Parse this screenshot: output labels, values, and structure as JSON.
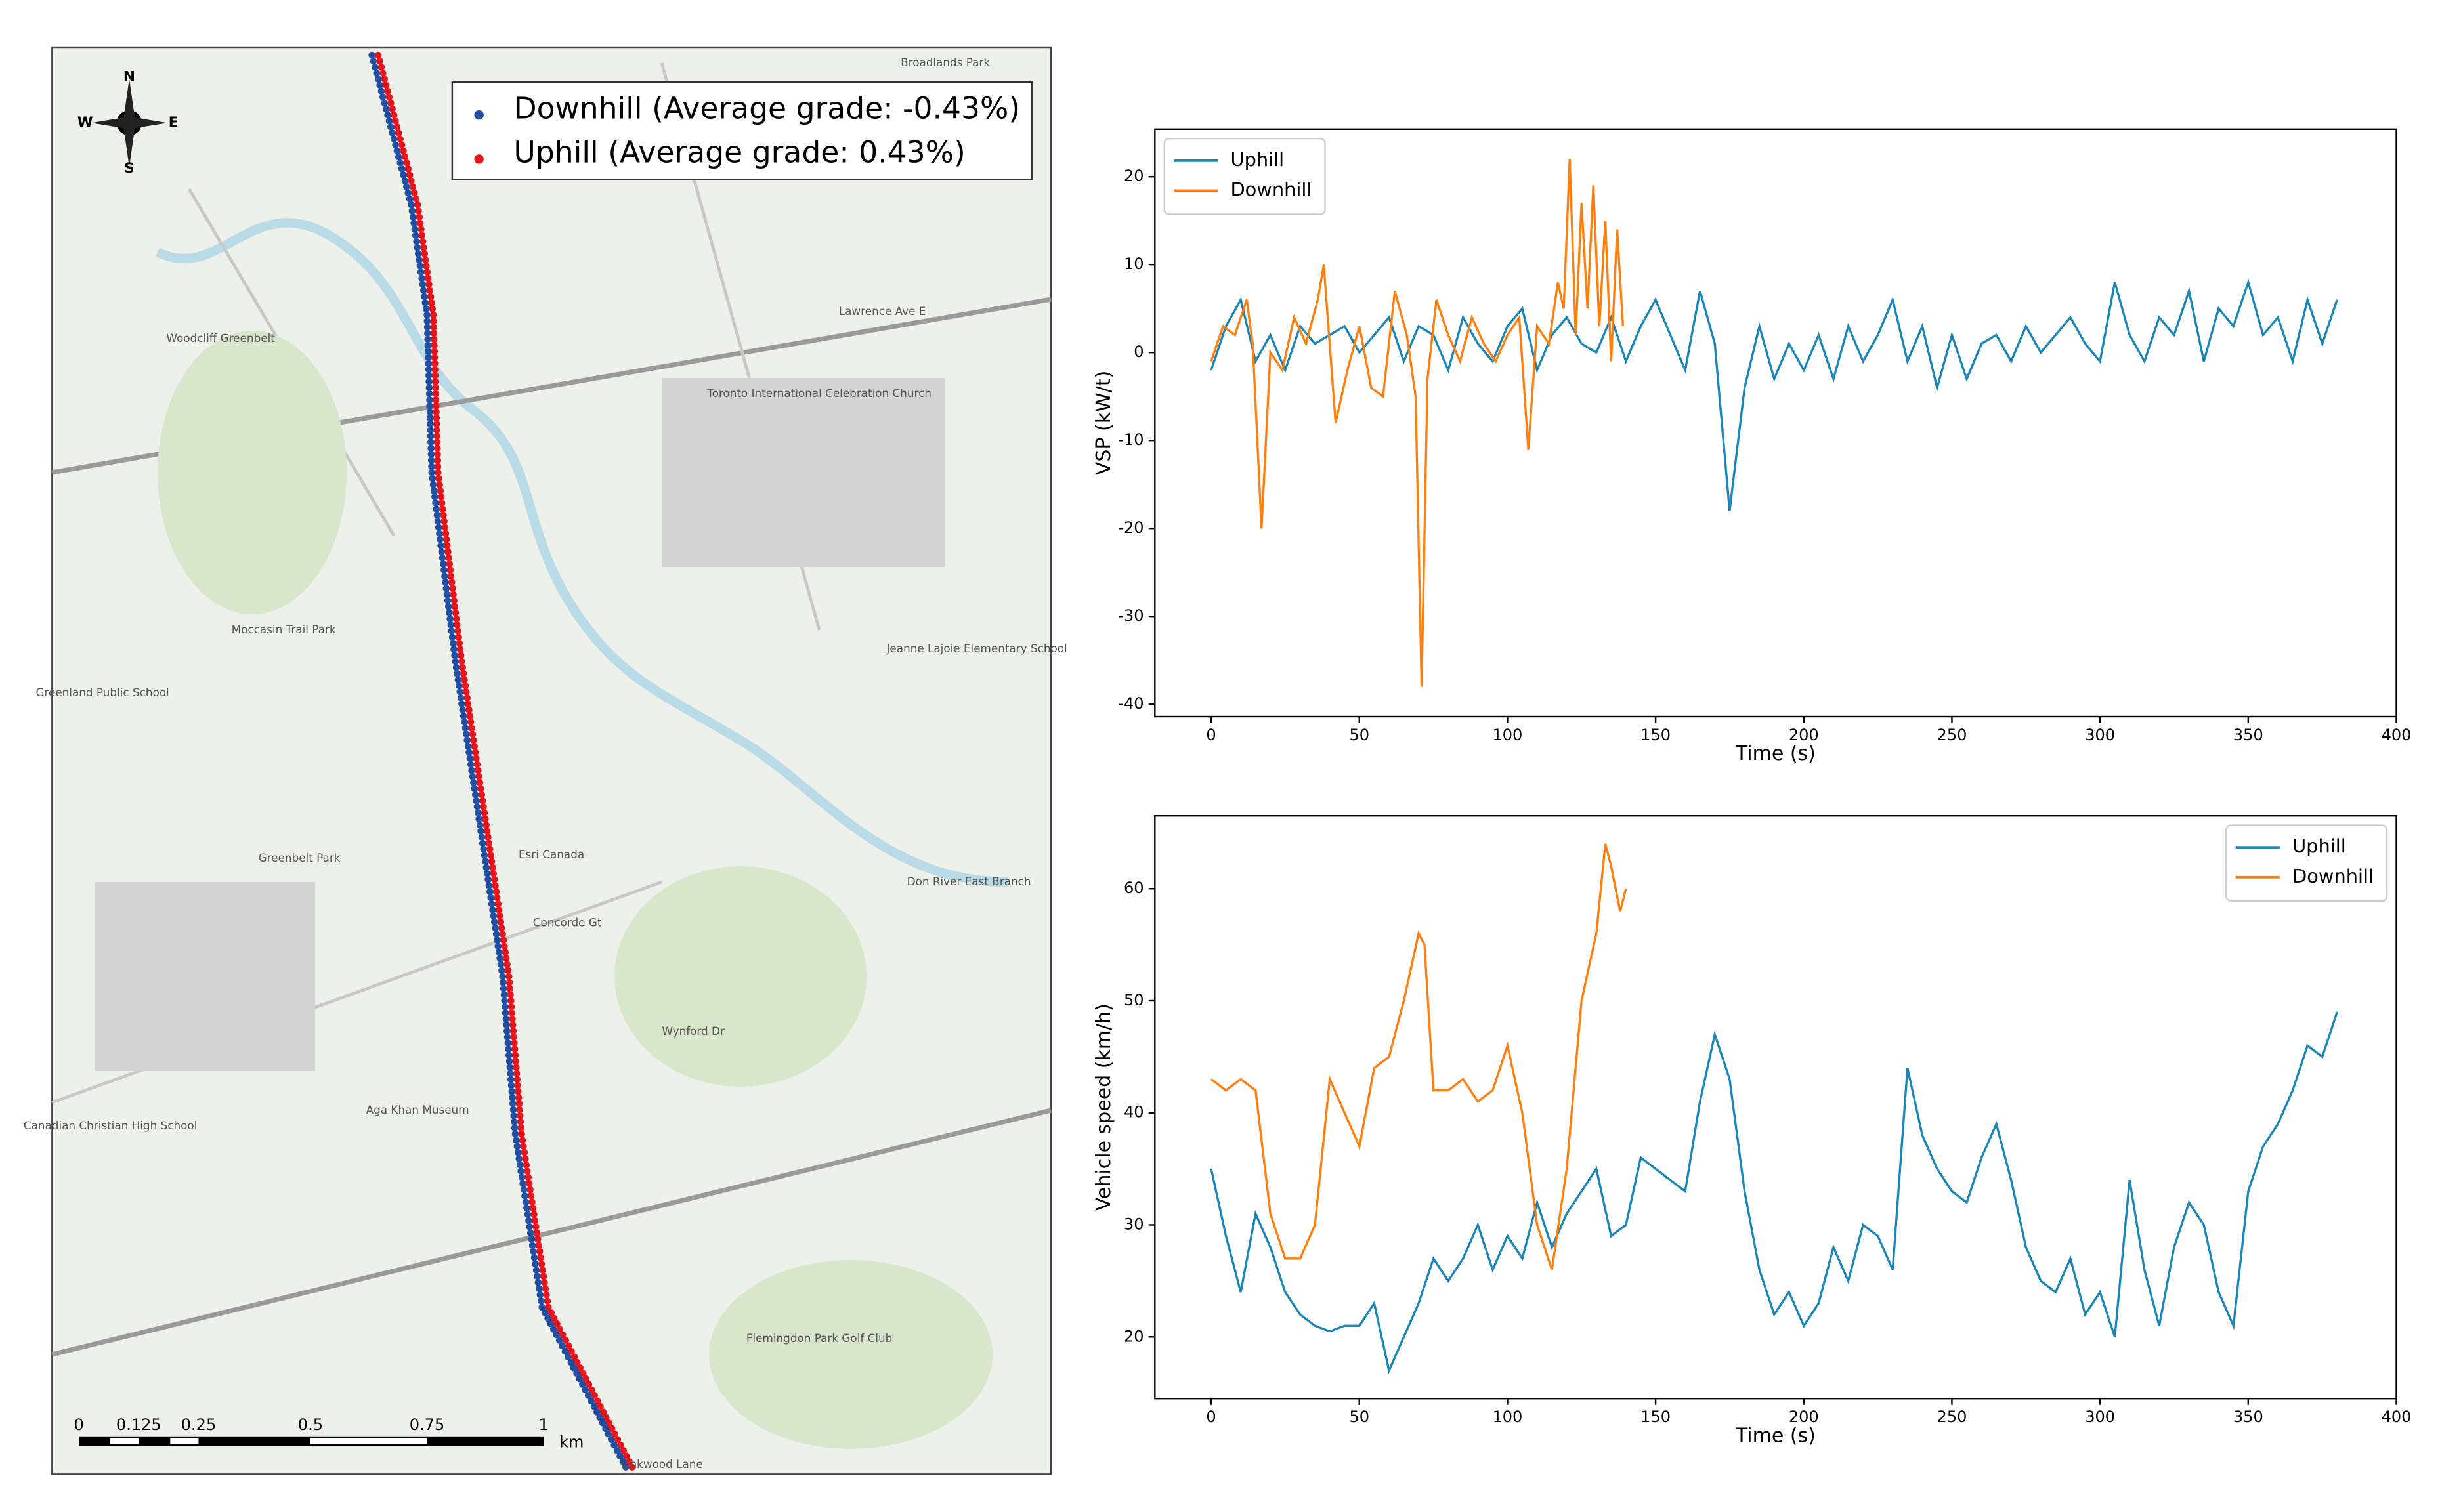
{
  "map": {
    "compass": [
      "N",
      "S",
      "W",
      "E"
    ],
    "legend": [
      {
        "name": "Downhill (Average grade: -0.43%)",
        "color": "#1f4fa3"
      },
      {
        "name": "Uphill (Average grade: 0.43%)",
        "color": "#e8141b"
      }
    ],
    "scale_labels": [
      "0",
      "0.125",
      "0.25",
      "0.5",
      "0.75",
      "1",
      "km"
    ],
    "labels": [
      "Broadlands Park",
      "Lawrence Ave E",
      "Woodcliff Greenbelt",
      "Toronto International Celebration Church",
      "Moccasin Trail Park",
      "Greenland Public School",
      "Jeanne Lajoie Elementary School",
      "Greenbelt Park",
      "Esri Canada",
      "Concorde Gt",
      "Don River East Branch",
      "Wynford Dr",
      "Aga Khan Museum",
      "Canadian Christian High School",
      "Flemingdon Park Golf Club",
      "Linkwood Lane"
    ]
  },
  "chart_data": [
    {
      "type": "line",
      "ylabel": "VSP (kW/t)",
      "xlabel": "Time (s)",
      "xlim": [
        -19,
        400
      ],
      "ylim": [
        -41.4,
        25.4
      ],
      "xticks": [
        0,
        50,
        100,
        150,
        200,
        250,
        300,
        350,
        400
      ],
      "yticks": [
        -40,
        -30,
        -20,
        -10,
        0,
        10,
        20
      ],
      "legend": "upper left",
      "series": [
        {
          "name": "Uphill",
          "color": "#1a86b8",
          "x": [
            0,
            5,
            10,
            15,
            20,
            25,
            30,
            35,
            40,
            45,
            50,
            55,
            60,
            65,
            70,
            75,
            80,
            85,
            90,
            95,
            100,
            105,
            110,
            115,
            120,
            125,
            130,
            135,
            140,
            145,
            150,
            155,
            160,
            165,
            170,
            175,
            180,
            185,
            190,
            195,
            200,
            205,
            210,
            215,
            220,
            225,
            230,
            235,
            240,
            245,
            250,
            255,
            260,
            265,
            270,
            275,
            280,
            285,
            290,
            295,
            300,
            305,
            310,
            315,
            320,
            325,
            330,
            335,
            340,
            345,
            350,
            355,
            360,
            365,
            370,
            375,
            380
          ],
          "values": [
            -2,
            3,
            6,
            -1,
            2,
            -2,
            3,
            1,
            2,
            3,
            0,
            2,
            4,
            -1,
            3,
            2,
            -2,
            4,
            1,
            -1,
            3,
            5,
            -2,
            2,
            4,
            1,
            0,
            4,
            -1,
            3,
            6,
            2,
            -2,
            7,
            1,
            -18,
            -4,
            3,
            -3,
            1,
            -2,
            2,
            -3,
            3,
            -1,
            2,
            6,
            -1,
            3,
            -4,
            2,
            -3,
            1,
            2,
            -1,
            3,
            0,
            2,
            4,
            1,
            -1,
            8,
            2,
            -1,
            4,
            2,
            7,
            -1,
            5,
            3,
            8,
            2,
            4,
            -1,
            6,
            1,
            6
          ]
        },
        {
          "name": "Downhill",
          "color": "#ff7f0e",
          "x": [
            0,
            4,
            8,
            12,
            14,
            17,
            20,
            24,
            28,
            32,
            36,
            38,
            42,
            46,
            50,
            54,
            58,
            62,
            66,
            69,
            71,
            73,
            76,
            80,
            84,
            88,
            92,
            96,
            100,
            104,
            107,
            110,
            114,
            117,
            119,
            121,
            123,
            125,
            127,
            129,
            131,
            133,
            135,
            137,
            139
          ],
          "values": [
            -1,
            3,
            2,
            6,
            1,
            -20,
            0,
            -2,
            4,
            1,
            6,
            10,
            -8,
            -2,
            3,
            -4,
            -5,
            7,
            2,
            -5,
            -38,
            -3,
            6,
            2,
            -1,
            4,
            1,
            -1,
            2,
            4,
            -11,
            3,
            1,
            8,
            5,
            22,
            2,
            17,
            5,
            19,
            3,
            15,
            -1,
            14,
            3
          ]
        }
      ]
    },
    {
      "type": "line",
      "ylabel": "Vehicle speed (km/h)",
      "xlabel": "Time (s)",
      "xlim": [
        -19,
        400
      ],
      "ylim": [
        14.5,
        66.5
      ],
      "xticks": [
        0,
        50,
        100,
        150,
        200,
        250,
        300,
        350,
        400
      ],
      "yticks": [
        20,
        30,
        40,
        50,
        60
      ],
      "legend": "upper right",
      "series": [
        {
          "name": "Uphill",
          "color": "#1a86b8",
          "x": [
            0,
            5,
            10,
            15,
            20,
            25,
            30,
            35,
            40,
            45,
            50,
            55,
            60,
            65,
            70,
            75,
            80,
            85,
            90,
            95,
            100,
            105,
            110,
            115,
            120,
            125,
            130,
            135,
            140,
            145,
            150,
            155,
            160,
            165,
            170,
            175,
            180,
            185,
            190,
            195,
            200,
            205,
            210,
            215,
            220,
            225,
            230,
            235,
            240,
            245,
            250,
            255,
            260,
            265,
            270,
            275,
            280,
            285,
            290,
            295,
            300,
            305,
            310,
            315,
            320,
            325,
            330,
            335,
            340,
            345,
            350,
            355,
            360,
            365,
            370,
            375,
            380
          ],
          "values": [
            35,
            29,
            24,
            31,
            28,
            24,
            22,
            21,
            20.5,
            21,
            21,
            23,
            17,
            20,
            23,
            27,
            25,
            27,
            30,
            26,
            29,
            27,
            32,
            28,
            31,
            33,
            35,
            29,
            30,
            36,
            35,
            34,
            33,
            41,
            47,
            43,
            33,
            26,
            22,
            24,
            21,
            23,
            28,
            25,
            30,
            29,
            26,
            44,
            38,
            35,
            33,
            32,
            36,
            39,
            34,
            28,
            25,
            24,
            27,
            22,
            24,
            20,
            34,
            26,
            21,
            28,
            32,
            30,
            24,
            21,
            33,
            37,
            39,
            42,
            46,
            45,
            49
          ]
        },
        {
          "name": "Downhill",
          "color": "#ff7f0e",
          "x": [
            0,
            5,
            10,
            15,
            20,
            25,
            30,
            35,
            40,
            45,
            50,
            55,
            60,
            65,
            70,
            72,
            75,
            80,
            85,
            90,
            95,
            100,
            105,
            110,
            115,
            120,
            125,
            130,
            133,
            135,
            138,
            140
          ],
          "values": [
            43,
            42,
            43,
            42,
            31,
            27,
            27,
            30,
            43,
            40,
            37,
            44,
            45,
            50,
            56,
            55,
            42,
            42,
            43,
            41,
            42,
            46,
            40,
            30,
            26,
            35,
            50,
            56,
            64,
            62,
            58,
            60
          ]
        }
      ]
    }
  ]
}
